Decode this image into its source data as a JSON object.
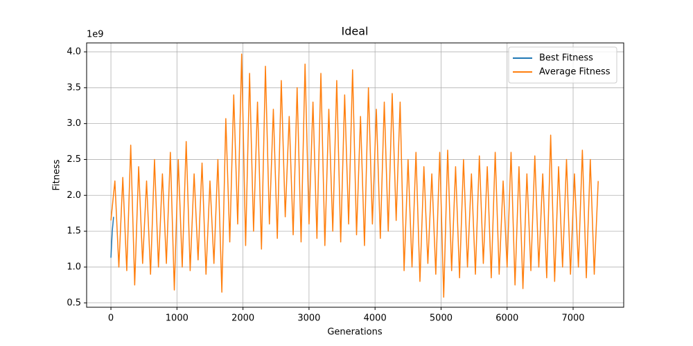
{
  "chart_data": {
    "type": "line",
    "title": "Ideal",
    "xlabel": "Generations",
    "ylabel": "Fitness",
    "y_offset_label": "1e9",
    "xlim": [
      -368,
      7766
    ],
    "ylim": [
      0.44,
      4.125
    ],
    "xticks": [
      0,
      1000,
      2000,
      3000,
      4000,
      5000,
      6000,
      7000
    ],
    "yticks": [
      0.5,
      {
        "value": 1,
        "label": "1.0"
      },
      1.5,
      {
        "value": 2,
        "label": "2.0"
      },
      2.5,
      {
        "value": 3,
        "label": "3.0"
      },
      3.5,
      {
        "value": 4,
        "label": "4.0"
      }
    ],
    "grid": true,
    "legend": "upper right",
    "series": [
      {
        "name": "Best Fitness",
        "color": "#1f77b4",
        "x": [
          0,
          20,
          40
        ],
        "values": [
          1.13,
          1.5,
          1.7
        ]
      },
      {
        "name": "Average Fitness",
        "color": "#ff7f0e",
        "x": [
          0,
          60,
          120,
          180,
          240,
          300,
          360,
          420,
          480,
          540,
          600,
          660,
          720,
          780,
          840,
          900,
          960,
          1020,
          1080,
          1140,
          1200,
          1260,
          1320,
          1380,
          1440,
          1500,
          1560,
          1620,
          1680,
          1740,
          1800,
          1860,
          1920,
          1980,
          2040,
          2100,
          2160,
          2220,
          2280,
          2340,
          2400,
          2460,
          2520,
          2580,
          2640,
          2700,
          2760,
          2820,
          2880,
          2940,
          3000,
          3060,
          3120,
          3180,
          3240,
          3300,
          3360,
          3420,
          3480,
          3540,
          3600,
          3660,
          3720,
          3780,
          3840,
          3900,
          3960,
          4020,
          4080,
          4140,
          4200,
          4260,
          4320,
          4380,
          4440,
          4500,
          4560,
          4620,
          4680,
          4740,
          4800,
          4860,
          4920,
          4980,
          5040,
          5100,
          5160,
          5220,
          5280,
          5340,
          5400,
          5460,
          5520,
          5580,
          5640,
          5700,
          5760,
          5820,
          5880,
          5940,
          6000,
          6060,
          6120,
          6180,
          6240,
          6300,
          6360,
          6420,
          6480,
          6540,
          6600,
          6660,
          6720,
          6780,
          6840,
          6900,
          6960,
          7020,
          7080,
          7140,
          7200,
          7260,
          7320,
          7380
        ],
        "values": [
          1.65,
          2.2,
          1.0,
          2.25,
          0.95,
          2.7,
          0.75,
          2.4,
          1.05,
          2.2,
          0.9,
          2.5,
          1.0,
          2.3,
          1.05,
          2.6,
          0.68,
          2.5,
          1.0,
          2.75,
          0.95,
          2.3,
          1.1,
          2.45,
          0.9,
          2.2,
          1.05,
          2.5,
          0.65,
          3.07,
          1.35,
          3.4,
          1.6,
          3.97,
          1.3,
          3.7,
          1.5,
          3.3,
          1.25,
          3.8,
          1.6,
          3.2,
          1.4,
          3.6,
          1.7,
          3.1,
          1.45,
          3.5,
          1.35,
          3.83,
          1.6,
          3.3,
          1.4,
          3.7,
          1.3,
          3.2,
          1.5,
          3.6,
          1.35,
          3.4,
          1.6,
          3.75,
          1.45,
          3.1,
          1.3,
          3.5,
          1.6,
          3.2,
          1.4,
          3.3,
          1.5,
          3.42,
          1.65,
          3.3,
          0.95,
          2.5,
          1.0,
          2.6,
          0.8,
          2.4,
          1.05,
          2.3,
          0.9,
          2.6,
          0.58,
          2.63,
          0.95,
          2.4,
          0.85,
          2.5,
          1.0,
          2.3,
          0.9,
          2.55,
          1.05,
          2.4,
          0.85,
          2.6,
          0.9,
          2.2,
          1.0,
          2.6,
          0.75,
          2.4,
          0.7,
          2.3,
          0.95,
          2.55,
          1.0,
          2.3,
          0.85,
          2.84,
          0.8,
          2.4,
          1.0,
          2.5,
          0.9,
          2.3,
          1.0,
          2.63,
          0.85,
          2.5,
          0.9,
          2.2
        ]
      }
    ]
  }
}
